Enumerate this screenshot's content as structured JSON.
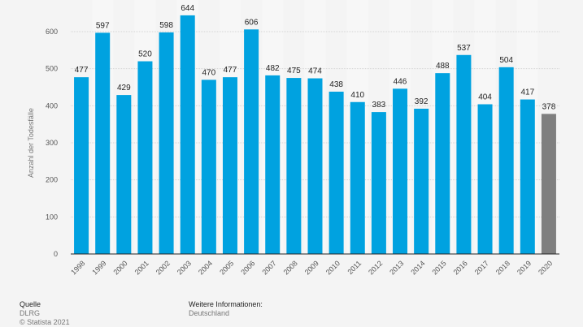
{
  "chart_data": {
    "type": "bar",
    "title": "",
    "xlabel": "",
    "ylabel": "Anzahl der Todesfälle",
    "ylim": [
      0,
      600
    ],
    "yticks": [
      0,
      100,
      200,
      300,
      400,
      500,
      600
    ],
    "grid": true,
    "categories": [
      "1998",
      "1999",
      "2000",
      "2001",
      "2002",
      "2003",
      "2004",
      "2005",
      "2006",
      "2007",
      "2008",
      "2009",
      "2010",
      "2011",
      "2012",
      "2013",
      "2014",
      "2015",
      "2016",
      "2017",
      "2018",
      "2019",
      "2020"
    ],
    "values": [
      477,
      597,
      429,
      520,
      598,
      644,
      470,
      477,
      606,
      482,
      475,
      474,
      438,
      410,
      383,
      446,
      392,
      488,
      537,
      404,
      504,
      417,
      378
    ],
    "colors": {
      "bar": "#00a2e0",
      "highlight": "#7f7f7f",
      "highlight_category": "2020"
    }
  },
  "footer": {
    "source_label": "Quelle",
    "source": "DLRG",
    "copyright": "© Statista 2021",
    "info_label": "Weitere Informationen:",
    "info": "Deutschland"
  }
}
